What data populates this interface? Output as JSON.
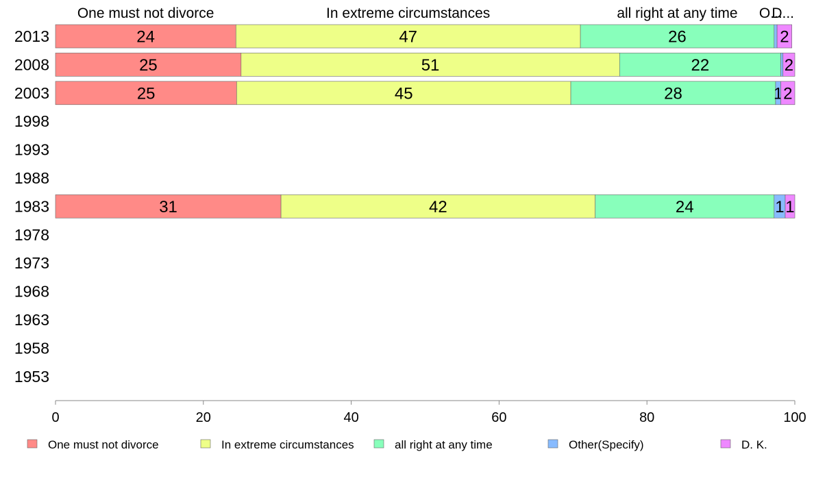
{
  "chart_data": {
    "type": "bar",
    "orientation": "horizontal",
    "stacked": true,
    "title": "",
    "xlabel": "",
    "ylabel": "",
    "xlim": [
      0,
      100
    ],
    "x_ticks": [
      "0",
      "20",
      "40",
      "60",
      "80",
      "100"
    ],
    "categories": [
      "2013",
      "2008",
      "2003",
      "1998",
      "1993",
      "1988",
      "1983",
      "1978",
      "1973",
      "1968",
      "1963",
      "1958",
      "1953"
    ],
    "top_labels": [
      "One must not divorce",
      "In extreme circumstances",
      "all right at any time",
      "O...",
      "D..."
    ],
    "series": [
      {
        "name": "One must not divorce",
        "color": "#ff8a87",
        "values": [
          24.4,
          25.1,
          24.5,
          null,
          null,
          null,
          30.5,
          null,
          null,
          null,
          null,
          null,
          null
        ]
      },
      {
        "name": "In extreme circumstances",
        "color": "#eeff88",
        "values": [
          46.6,
          51.2,
          45.2,
          null,
          null,
          null,
          42.5,
          null,
          null,
          null,
          null,
          null,
          null
        ]
      },
      {
        "name": "all right at any time",
        "color": "#88ffbb",
        "values": [
          26.2,
          21.8,
          27.7,
          null,
          null,
          null,
          24.2,
          null,
          null,
          null,
          null,
          null,
          null
        ]
      },
      {
        "name": "Other(Specify)",
        "color": "#88bbff",
        "values": [
          0.4,
          0.3,
          0.7,
          null,
          null,
          null,
          1.5,
          null,
          null,
          null,
          null,
          null,
          null
        ]
      },
      {
        "name": "D. K.",
        "color": "#ee88ff",
        "values": [
          2.0,
          1.6,
          1.9,
          null,
          null,
          null,
          1.3,
          null,
          null,
          null,
          null,
          null,
          null
        ]
      }
    ],
    "data_labels": [
      [
        "24",
        "47",
        "26",
        "",
        "2"
      ],
      [
        "25",
        "51",
        "22",
        "",
        "2"
      ],
      [
        "25",
        "45",
        "28",
        "1",
        "2"
      ],
      null,
      null,
      null,
      [
        "31",
        "42",
        "24",
        "1",
        "1"
      ],
      null,
      null,
      null,
      null,
      null,
      null
    ],
    "legend": {
      "position": "bottom",
      "entries": [
        "One must not divorce",
        "In extreme circumstances",
        "all right at any time",
        "Other(Specify)",
        "D. K."
      ]
    },
    "grid": false
  }
}
